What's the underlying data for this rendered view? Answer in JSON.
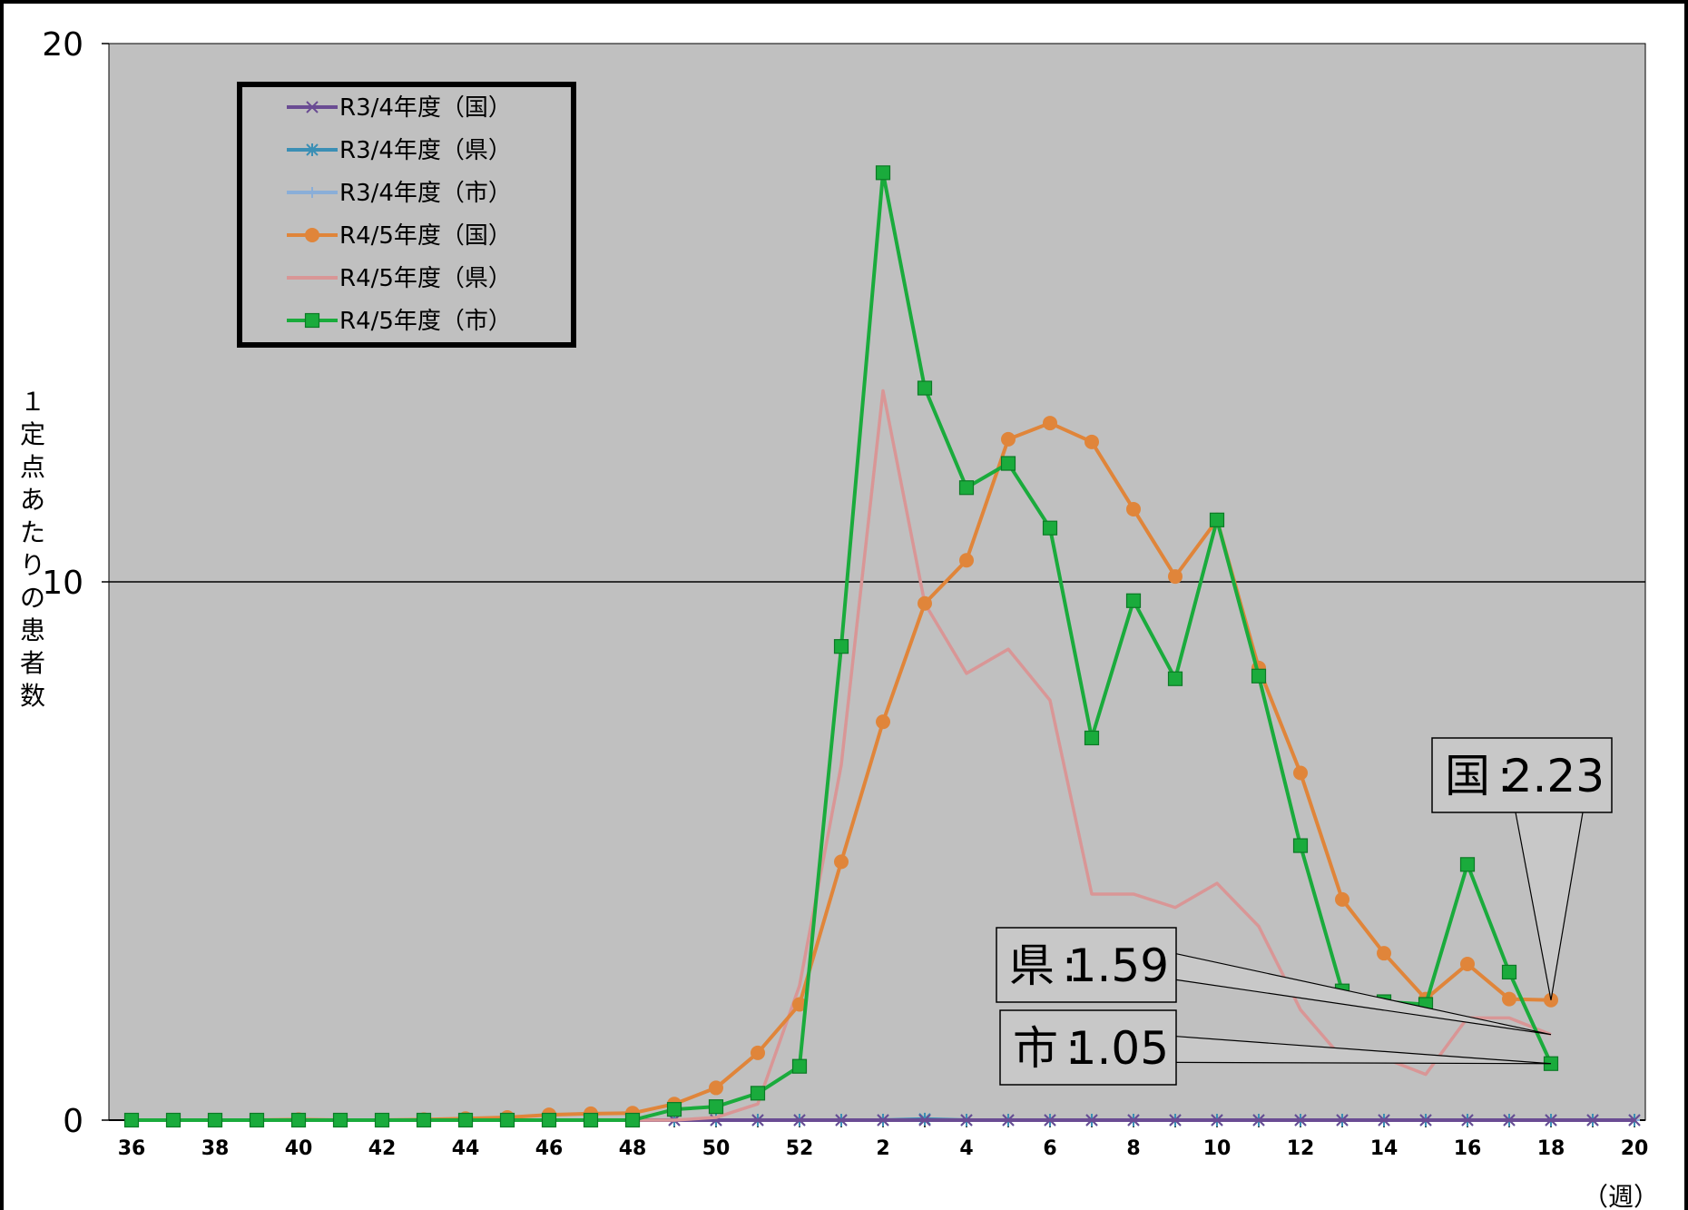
{
  "chart_data": {
    "type": "line",
    "ylabel": "１定点あたりの患者数",
    "xlabel": "（週）",
    "ylim": [
      0,
      20
    ],
    "y_ticks": [
      "0",
      "10",
      "20"
    ],
    "x_categories": [
      "36",
      "37",
      "38",
      "39",
      "40",
      "41",
      "42",
      "43",
      "44",
      "45",
      "46",
      "47",
      "48",
      "49",
      "50",
      "51",
      "52",
      "1",
      "2",
      "3",
      "4",
      "5",
      "6",
      "7",
      "8",
      "9",
      "10",
      "11",
      "12",
      "13",
      "14",
      "15",
      "16",
      "17",
      "18",
      "19",
      "20"
    ],
    "x_tick_labels": [
      "36",
      "38",
      "40",
      "42",
      "44",
      "46",
      "48",
      "50",
      "52",
      "2",
      "4",
      "6",
      "8",
      "10",
      "12",
      "14",
      "16",
      "18",
      "20"
    ],
    "grid": "horizontal at 10",
    "legend_position": "top-left",
    "series": [
      {
        "name": "R3/4年度（国）",
        "color": "#6a4c93",
        "marker": "x",
        "values": [
          0,
          0,
          0,
          0,
          0,
          0,
          0,
          0,
          0,
          0,
          0,
          0,
          0,
          0,
          0,
          0,
          0,
          0,
          0,
          0,
          0,
          0,
          0,
          0,
          0,
          0,
          0,
          0,
          0,
          0,
          0,
          0,
          0,
          0,
          0,
          0,
          0
        ]
      },
      {
        "name": "R3/4年度（県）",
        "color": "#3b8fb5",
        "marker": "star",
        "values": [
          0,
          0,
          0,
          0,
          0,
          0,
          0,
          0,
          0,
          0,
          0,
          0,
          0,
          0,
          0,
          0,
          0,
          0,
          0,
          0.02,
          0,
          0,
          0,
          0,
          0,
          0,
          0,
          0,
          0,
          0,
          0,
          0,
          0,
          0,
          0,
          0,
          0
        ]
      },
      {
        "name": "R3/4年度（市）",
        "color": "#8aaed8",
        "marker": "plus",
        "values": [
          0,
          0,
          0,
          0,
          0,
          0,
          0,
          0,
          0,
          0,
          0,
          0,
          0,
          0,
          0,
          0,
          0,
          0,
          0,
          0,
          0,
          0,
          0,
          0,
          0,
          0,
          0,
          0,
          0,
          0,
          0,
          0,
          0,
          0,
          0,
          0,
          0
        ]
      },
      {
        "name": "R4/5年度（国）",
        "color": "#e0853a",
        "marker": "circle",
        "values": [
          0,
          0,
          0,
          0,
          0.01,
          0,
          0,
          0.01,
          0.03,
          0.05,
          0.1,
          0.12,
          0.13,
          0.3,
          0.6,
          1.25,
          2.15,
          4.8,
          7.4,
          9.6,
          10.4,
          12.65,
          12.95,
          12.6,
          11.35,
          10.1,
          11.15,
          8.4,
          6.45,
          4.1,
          3.1,
          2.25,
          2.9,
          2.25,
          2.23,
          null,
          null
        ]
      },
      {
        "name": "R4/5年度（県）",
        "color": "#d99696",
        "marker": "none",
        "values": [
          0,
          0,
          0,
          0,
          0,
          0,
          0,
          0,
          0,
          0,
          0,
          0,
          0,
          0,
          0.05,
          0.3,
          2.5,
          6.6,
          13.55,
          9.6,
          8.3,
          8.75,
          7.8,
          4.2,
          4.2,
          3.95,
          4.4,
          3.6,
          2.05,
          1.15,
          1.15,
          0.85,
          1.9,
          1.9,
          1.59,
          null,
          null
        ]
      },
      {
        "name": "R4/5年度（市）",
        "color": "#1aab3c",
        "marker": "square",
        "values": [
          0,
          0,
          0,
          0,
          0,
          0,
          0,
          0,
          0,
          0,
          0,
          0,
          0,
          0.2,
          0.25,
          0.5,
          1.0,
          8.8,
          17.6,
          13.6,
          11.75,
          12.2,
          11.0,
          7.1,
          9.65,
          8.2,
          11.15,
          8.25,
          5.1,
          2.4,
          2.2,
          2.15,
          4.75,
          2.75,
          1.05,
          null,
          null
        ]
      }
    ],
    "annotations": [
      {
        "label": "国",
        "value": "2.23",
        "series": "R4/5年度（国）"
      },
      {
        "label": "県",
        "value": "1.59",
        "series": "R4/5年度（県）"
      },
      {
        "label": "市",
        "value": "1.05",
        "series": "R4/5年度（市）"
      }
    ],
    "plot_background": "#c0c0c0"
  }
}
